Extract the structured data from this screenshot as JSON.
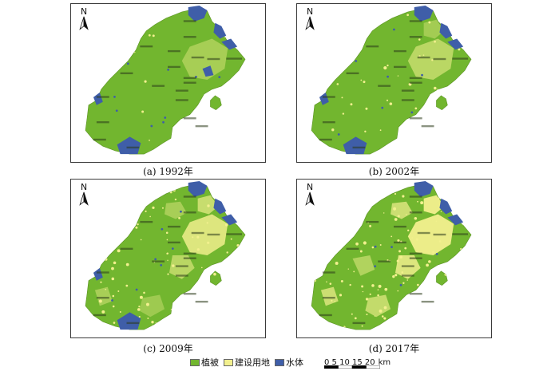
{
  "colors": {
    "vegetation": "#72b62f",
    "construction": "#f2f08e",
    "water": "#3f5ea8",
    "frame": "#3a3a3a"
  },
  "north_label": "N",
  "panels": [
    {
      "id": "a",
      "caption": "(a) 1992年",
      "construction_level": 0.04,
      "water_level": 1.0
    },
    {
      "id": "b",
      "caption": "(b) 2002年",
      "construction_level": 0.15,
      "water_level": 0.85
    },
    {
      "id": "c",
      "caption": "(c) 2009年",
      "construction_level": 0.35,
      "water_level": 0.75
    },
    {
      "id": "d",
      "caption": "(d) 2017年",
      "construction_level": 0.55,
      "water_level": 0.55
    }
  ],
  "legend": [
    {
      "label": "植被",
      "color": "#72b62f"
    },
    {
      "label": "建设用地",
      "color": "#f2f08e"
    },
    {
      "label": "水体",
      "color": "#3f5ea8"
    }
  ],
  "scale": {
    "ticks": "0 5 10 15 20",
    "unit": "km"
  }
}
